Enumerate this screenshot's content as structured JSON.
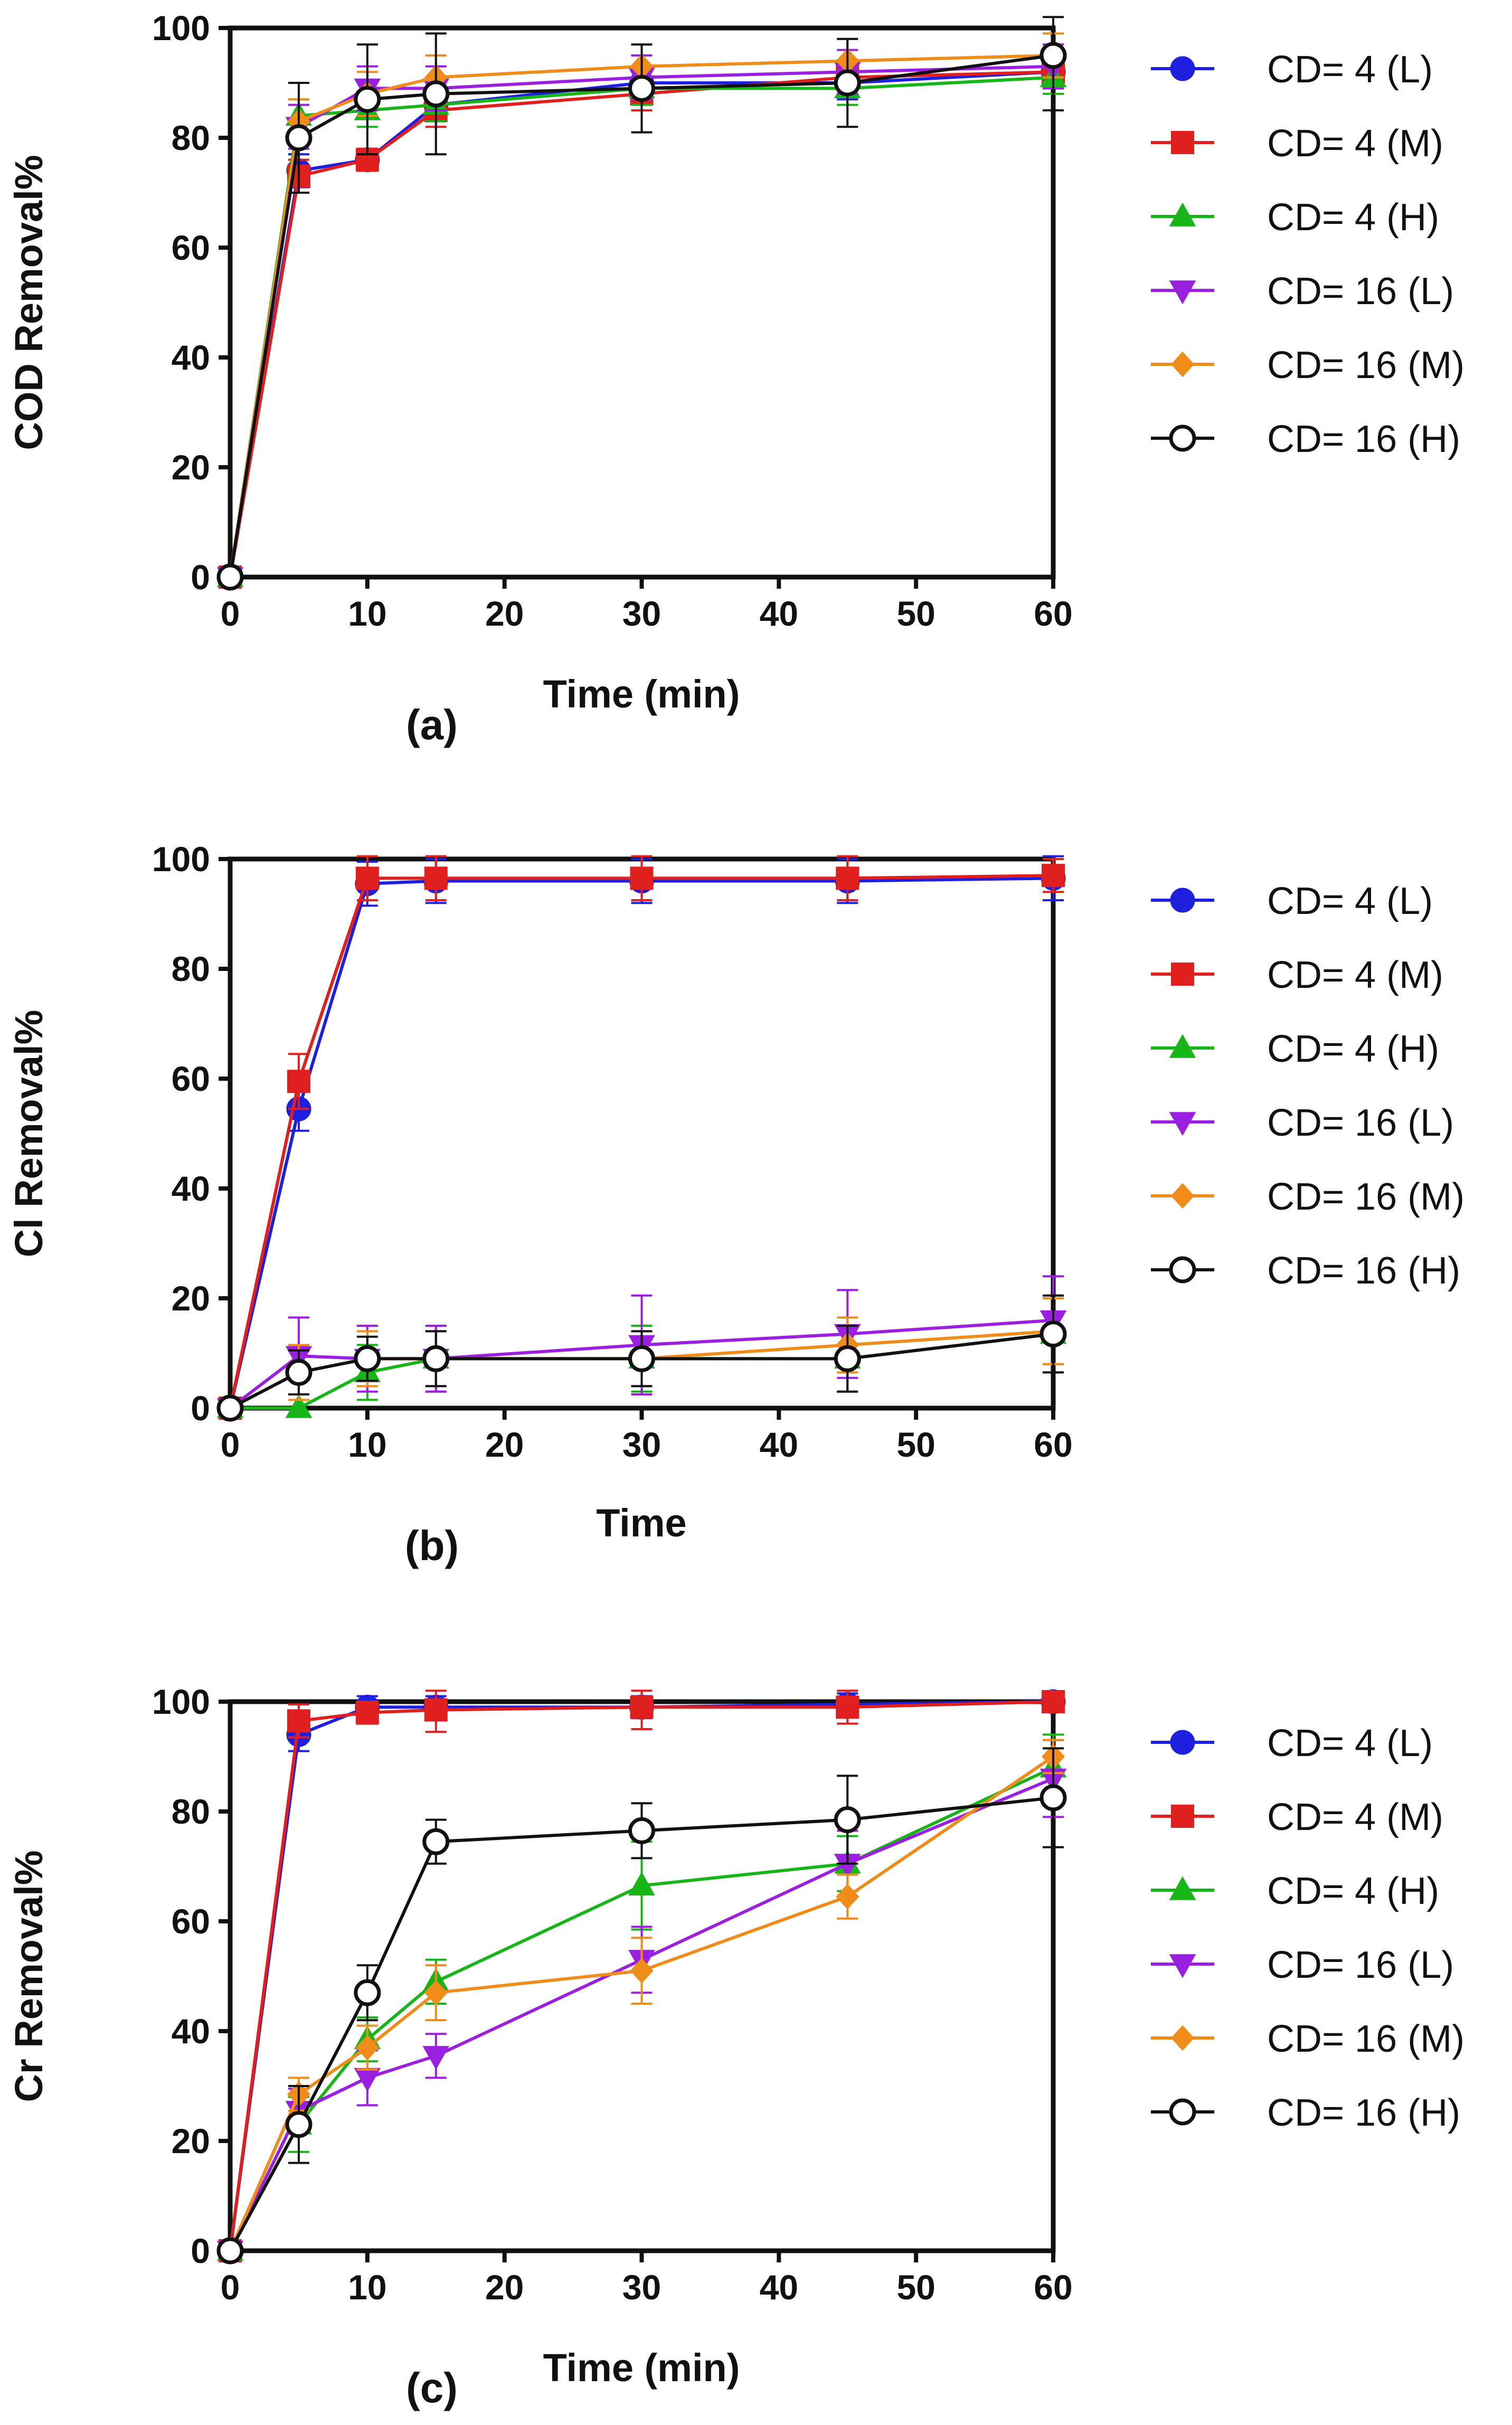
{
  "chart_data": [
    {
      "type": "line",
      "panel_label": "(a)",
      "xlabel": "Time (min)",
      "ylabel": "COD Removal%",
      "xlim": [
        0,
        60
      ],
      "ylim": [
        0,
        100
      ],
      "x_ticks": [
        0,
        10,
        20,
        30,
        40,
        50,
        60
      ],
      "y_ticks": [
        0,
        20,
        40,
        60,
        80,
        100
      ],
      "x": [
        0,
        5,
        10,
        15,
        30,
        45,
        60
      ],
      "legend_position": "right",
      "series": [
        {
          "name": "CD= 4 (L)",
          "color": "#1f1fe0",
          "marker": "circle",
          "values": [
            0,
            74,
            76,
            86,
            90,
            90,
            92
          ],
          "errors": [
            0,
            3,
            2,
            3,
            3,
            3,
            3
          ]
        },
        {
          "name": "CD= 4 (M)",
          "color": "#e01f1f",
          "marker": "square",
          "values": [
            0,
            73,
            76,
            85,
            88,
            91,
            92
          ],
          "errors": [
            0,
            3,
            2,
            3,
            3,
            3,
            3
          ]
        },
        {
          "name": "CD= 4 (H)",
          "color": "#17b517",
          "marker": "triangle-up",
          "values": [
            0,
            84,
            85,
            86,
            89,
            89,
            91
          ],
          "errors": [
            0,
            3,
            3,
            3,
            3,
            3,
            3
          ]
        },
        {
          "name": "CD= 16 (L)",
          "color": "#9b1fe0",
          "marker": "triangle-down",
          "values": [
            0,
            82,
            89,
            89,
            91,
            92,
            93
          ],
          "errors": [
            0,
            4,
            4,
            4,
            4,
            4,
            4
          ]
        },
        {
          "name": "CD= 16 (M)",
          "color": "#f08c1a",
          "marker": "diamond",
          "values": [
            0,
            83,
            88,
            91,
            93,
            94,
            95
          ],
          "errors": [
            0,
            4,
            4,
            4,
            4,
            4,
            4
          ]
        },
        {
          "name": "CD= 16 (H)",
          "color": "#111111",
          "marker": "open-circle",
          "values": [
            0,
            80,
            87,
            88,
            89,
            90,
            95
          ],
          "errors": [
            0,
            10,
            10,
            11,
            8,
            8,
            10
          ]
        }
      ]
    },
    {
      "type": "line",
      "panel_label": "(b)",
      "xlabel": "Time",
      "ylabel": "Cl Removal%",
      "xlim": [
        0,
        60
      ],
      "ylim": [
        0,
        100
      ],
      "x_ticks": [
        0,
        10,
        20,
        30,
        40,
        50,
        60
      ],
      "y_ticks": [
        0,
        20,
        40,
        60,
        80,
        100
      ],
      "x": [
        0,
        5,
        10,
        15,
        30,
        45,
        60
      ],
      "legend_position": "right",
      "series": [
        {
          "name": "CD= 4 (L)",
          "color": "#1f1fe0",
          "marker": "circle",
          "values": [
            0,
            54.5,
            95.5,
            96,
            96,
            96,
            96.5
          ],
          "errors": [
            0,
            4,
            4,
            4,
            4,
            4,
            4
          ]
        },
        {
          "name": "CD= 4 (M)",
          "color": "#e01f1f",
          "marker": "square",
          "values": [
            0,
            59.5,
            96.5,
            96.5,
            96.5,
            96.5,
            97
          ],
          "errors": [
            0,
            5,
            4,
            4,
            4,
            4,
            3
          ]
        },
        {
          "name": "CD= 4 (H)",
          "color": "#17b517",
          "marker": "triangle-up",
          "values": [
            0,
            0,
            6.5,
            9,
            9,
            9,
            13.5
          ],
          "errors": [
            0,
            0,
            5,
            6,
            6,
            6,
            7
          ]
        },
        {
          "name": "CD= 16 (L)",
          "color": "#9b1fe0",
          "marker": "triangle-down",
          "values": [
            0,
            9.5,
            9,
            9,
            11.5,
            13.5,
            16
          ],
          "errors": [
            0,
            7,
            6,
            6,
            9,
            8,
            8
          ]
        },
        {
          "name": "CD= 16 (M)",
          "color": "#f08c1a",
          "marker": "diamond",
          "values": [
            0,
            6.5,
            9,
            9,
            9,
            11.5,
            14
          ],
          "errors": [
            0,
            5,
            5,
            5,
            5,
            5,
            6
          ]
        },
        {
          "name": "CD= 16 (H)",
          "color": "#111111",
          "marker": "open-circle",
          "values": [
            0,
            6.5,
            9,
            9,
            9,
            9,
            13.5
          ],
          "errors": [
            0,
            4,
            4,
            5,
            5,
            6,
            7
          ]
        }
      ]
    },
    {
      "type": "line",
      "panel_label": "(c)",
      "xlabel": "Time (min)",
      "ylabel": "Cr Removal%",
      "xlim": [
        0,
        60
      ],
      "ylim": [
        0,
        100
      ],
      "x_ticks": [
        0,
        10,
        20,
        30,
        40,
        50,
        60
      ],
      "y_ticks": [
        0,
        20,
        40,
        60,
        80,
        100
      ],
      "x": [
        0,
        5,
        10,
        15,
        30,
        45,
        60
      ],
      "legend_position": "right",
      "series": [
        {
          "name": "CD= 4 (L)",
          "color": "#1f1fe0",
          "marker": "circle",
          "values": [
            0,
            94,
            99,
            99,
            99,
            99.5,
            100
          ],
          "errors": [
            0,
            3,
            2,
            2,
            2,
            2,
            1
          ]
        },
        {
          "name": "CD= 4 (M)",
          "color": "#e01f1f",
          "marker": "square",
          "values": [
            0,
            96.5,
            98,
            98.5,
            99,
            99,
            100
          ],
          "errors": [
            0,
            3,
            2,
            4,
            4,
            3,
            1
          ]
        },
        {
          "name": "CD= 4 (H)",
          "color": "#17b517",
          "marker": "triangle-up",
          "values": [
            0,
            23,
            38.5,
            49,
            66.5,
            70.5,
            88
          ],
          "errors": [
            0,
            5,
            4,
            4,
            8,
            5,
            6
          ]
        },
        {
          "name": "CD= 16 (L)",
          "color": "#9b1fe0",
          "marker": "triangle-down",
          "values": [
            0,
            25.5,
            31.5,
            35.5,
            53,
            70.5,
            86
          ],
          "errors": [
            0,
            4,
            5,
            4,
            6,
            6,
            7
          ]
        },
        {
          "name": "CD= 16 (M)",
          "color": "#f08c1a",
          "marker": "diamond",
          "values": [
            0,
            28.5,
            37,
            47,
            51,
            64.5,
            90
          ],
          "errors": [
            0,
            3,
            4,
            5,
            6,
            4,
            3
          ]
        },
        {
          "name": "CD= 16 (H)",
          "color": "#111111",
          "marker": "open-circle",
          "values": [
            0,
            23,
            47,
            74.5,
            76.5,
            78.5,
            82.5
          ],
          "errors": [
            0,
            7,
            5,
            4,
            5,
            8,
            9
          ]
        }
      ]
    }
  ]
}
